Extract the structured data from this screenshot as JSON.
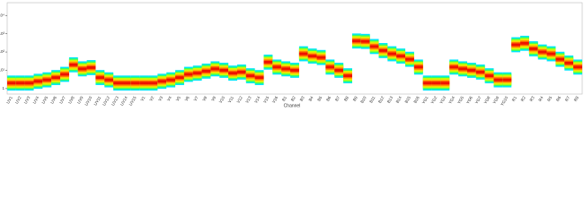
{
  "chart_data": {
    "type": "heatband",
    "x_label": "Channel",
    "categories": [
      "UV1",
      "UV2",
      "UV3",
      "UV4",
      "UV5",
      "UV6",
      "UV7",
      "UV8",
      "UV9",
      "UV10",
      "UV11",
      "UV12",
      "UV13",
      "UV14",
      "UV15",
      "V1",
      "V2",
      "V3",
      "V4",
      "V5",
      "V6",
      "V7",
      "V8",
      "V9",
      "V10",
      "V11",
      "V12",
      "V13",
      "V14",
      "V15",
      "V16",
      "B1",
      "B2",
      "B3",
      "B4",
      "B5",
      "B6",
      "B7",
      "B8",
      "B9",
      "B10",
      "B11",
      "B12",
      "B13",
      "B14",
      "B15",
      "B16",
      "YG1",
      "YG2",
      "YG3",
      "YG4",
      "YG5",
      "YG6",
      "YG7",
      "YG8",
      "YG9",
      "YG10",
      "R1",
      "R2",
      "R3",
      "R4",
      "R5",
      "R6",
      "R7",
      "R8"
    ],
    "values": [
      2,
      2,
      2,
      2.5,
      3,
      4,
      6,
      20,
      12,
      14,
      4,
      3,
      2,
      2,
      2,
      2,
      2,
      2.5,
      3,
      4,
      6,
      7,
      9,
      12,
      10,
      7,
      8,
      5,
      4,
      28,
      15,
      12,
      10,
      80,
      60,
      50,
      15,
      10,
      5,
      400,
      380,
      200,
      120,
      80,
      60,
      40,
      15,
      2,
      2,
      2,
      15,
      12,
      10,
      8,
      5,
      3,
      3,
      250,
      300,
      150,
      100,
      80,
      40,
      25,
      15
    ],
    "band_colors": [
      "#00e5ff",
      "#33ff66",
      "#ccff00",
      "#ffcc00",
      "#ff6600",
      "#ee1100"
    ],
    "log_scale": true,
    "ylim": [
      0.5,
      50000
    ],
    "yticks": [
      1,
      {
        "value": 10,
        "label": "10¹"
      },
      {
        "value": 100,
        "label": "10²"
      },
      {
        "value": 1000,
        "label": "10³"
      },
      {
        "value": 10000,
        "label": "10⁴"
      }
    ]
  }
}
